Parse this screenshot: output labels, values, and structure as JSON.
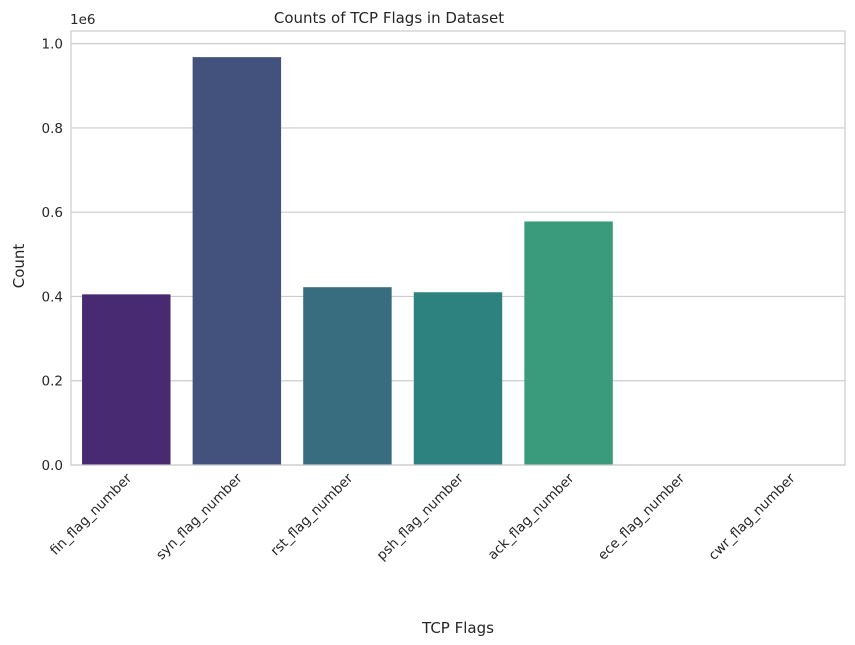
{
  "chart_data": {
    "type": "bar",
    "title": "Counts of TCP Flags in Dataset",
    "xlabel": "TCP Flags",
    "ylabel": "Count",
    "y_offset_label": "1e6",
    "categories": [
      "fin_flag_number",
      "syn_flag_number",
      "rst_flag_number",
      "psh_flag_number",
      "ack_flag_number",
      "ece_flag_number",
      "cwr_flag_number"
    ],
    "values": [
      0.405,
      0.968,
      0.422,
      0.41,
      0.578,
      0.0,
      0.0
    ],
    "value_scale": 1000000,
    "ylim": [
      0,
      1.03
    ],
    "yticks": [
      "0.0",
      "0.2",
      "0.4",
      "0.6",
      "0.8",
      "1.0"
    ],
    "ytick_values": [
      0.0,
      0.2,
      0.4,
      0.6,
      0.8,
      1.0
    ],
    "grid": "horizontal",
    "colors": [
      "#482a73",
      "#42527d",
      "#386d80",
      "#2d817f",
      "#3a9b7c",
      "#5dc25f",
      "#a3d84a"
    ]
  }
}
